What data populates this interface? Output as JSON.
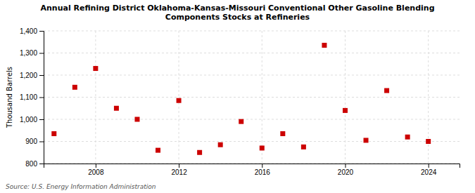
{
  "chart_data": {
    "type": "scatter",
    "title": "Annual Refining District Oklahoma-Kansas-Missouri Conventional Other Gasoline Blending\nComponents Stocks at Refineries",
    "ylabel": "Thousand Barrels",
    "source": "Source: U.S. Energy Information Administration",
    "x": [
      2006,
      2007,
      2008,
      2009,
      2010,
      2011,
      2012,
      2013,
      2014,
      2015,
      2016,
      2017,
      2018,
      2019,
      2020,
      2021,
      2022,
      2023,
      2024
    ],
    "values": [
      935,
      1145,
      1230,
      1050,
      1000,
      860,
      1085,
      850,
      885,
      990,
      870,
      935,
      875,
      1335,
      1040,
      905,
      1130,
      920,
      900
    ],
    "color": "#cc0000",
    "marker": "square",
    "xlim": [
      2005.5,
      2025.5
    ],
    "xticks": [
      2008,
      2012,
      2016,
      2020,
      2024
    ],
    "ylim": [
      800,
      1400
    ],
    "yticks": [
      800,
      900,
      {
        "value": 1000,
        "label": "1,000"
      },
      {
        "value": 1100,
        "label": "1,100"
      },
      {
        "value": 1200,
        "label": "1,200"
      },
      {
        "value": 1300,
        "label": "1,300"
      },
      {
        "value": 1400,
        "label": "1,400"
      }
    ],
    "grid": true
  }
}
